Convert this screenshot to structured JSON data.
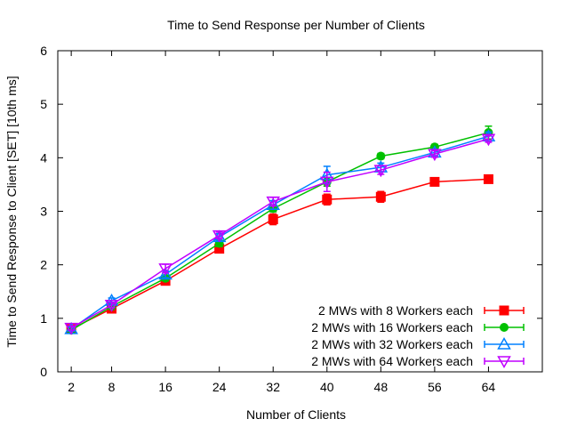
{
  "chart_data": {
    "type": "line",
    "title": "Time to Send Response per Number of Clients",
    "xlabel": "Number of Clients",
    "ylabel": "Time to Send Response to Client [SET] [10th ms]",
    "x": [
      2,
      8,
      16,
      24,
      32,
      40,
      48,
      56,
      64
    ],
    "xticks": [
      2,
      8,
      16,
      24,
      32,
      40,
      48,
      56,
      64
    ],
    "xlim": [
      0,
      72
    ],
    "ylim": [
      0,
      6
    ],
    "yticks": [
      0,
      1,
      2,
      3,
      4,
      5,
      6
    ],
    "grid": false,
    "legend_position": "bottom-right",
    "series": [
      {
        "name": "2 MWs with 8 Workers each",
        "color": "#ff0000",
        "marker": "square",
        "values": [
          0.8,
          1.18,
          1.7,
          2.3,
          2.85,
          3.22,
          3.27,
          3.55,
          3.6
        ],
        "errors": [
          0.04,
          0.04,
          0.05,
          0.06,
          0.1,
          0.1,
          0.1,
          0.05,
          0.05
        ]
      },
      {
        "name": "2 MWs with 16 Workers each",
        "color": "#00c000",
        "marker": "circle",
        "values": [
          0.78,
          1.22,
          1.75,
          2.4,
          3.05,
          3.55,
          4.03,
          4.2,
          4.47
        ],
        "errors": [
          0.04,
          0.04,
          0.05,
          0.06,
          0.06,
          0.08,
          0.05,
          0.05,
          0.12
        ]
      },
      {
        "name": "2 MWs with 32 Workers each",
        "color": "#0080ff",
        "marker": "triangle-up",
        "values": [
          0.8,
          1.33,
          1.82,
          2.52,
          3.12,
          3.68,
          3.82,
          4.1,
          4.4
        ],
        "errors": [
          0.04,
          0.05,
          0.06,
          0.06,
          0.08,
          0.16,
          0.08,
          0.06,
          0.08
        ]
      },
      {
        "name": "2 MWs with 64 Workers each",
        "color": "#c000ff",
        "marker": "triangle-down",
        "values": [
          0.82,
          1.25,
          1.93,
          2.55,
          3.18,
          3.55,
          3.77,
          4.07,
          4.35
        ],
        "errors": [
          0.04,
          0.05,
          0.08,
          0.06,
          0.08,
          0.18,
          0.08,
          0.06,
          0.06
        ]
      }
    ]
  }
}
